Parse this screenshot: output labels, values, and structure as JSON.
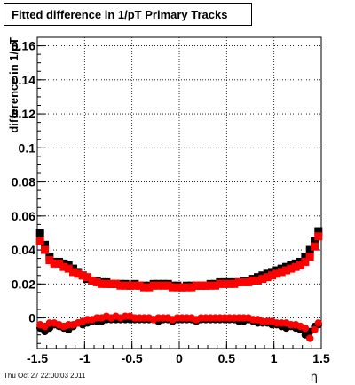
{
  "title": "Fitted difference in 1/pT  Primary Tracks",
  "timestamp": "Thu Oct 27 22:00:03 2011",
  "chart_data": {
    "type": "scatter",
    "xlabel": "η",
    "ylabel": "difference in 1/pT",
    "xlim": [
      -1.5,
      1.5
    ],
    "ylim": [
      -0.018,
      0.165
    ],
    "grid": true,
    "x_ticks": [
      -1.5,
      -1,
      -0.5,
      0,
      0.5,
      1,
      1.5
    ],
    "x_tick_labels": [
      "-1.5",
      "-1",
      "-0.5",
      "0",
      "0.5",
      "1",
      "1.5"
    ],
    "y_ticks": [
      0,
      0.02,
      0.04,
      0.06,
      0.08,
      0.1,
      0.12,
      0.14,
      0.16
    ],
    "y_tick_labels": [
      "0",
      "0.02",
      "0.04",
      "0.06",
      "0.08",
      "0.1",
      "0.12",
      "0.14",
      "0.16"
    ],
    "colors": {
      "black": "#000000",
      "red": "#ff0000"
    },
    "series": [
      {
        "marker": "square",
        "color": "#000000",
        "x": [
          -1.47,
          -1.42,
          -1.37,
          -1.32,
          -1.27,
          -1.22,
          -1.17,
          -1.12,
          -1.07,
          -1.02,
          -0.97,
          -0.92,
          -0.87,
          -0.82,
          -0.77,
          -0.72,
          -0.67,
          -0.62,
          -0.57,
          -0.52,
          -0.47,
          -0.42,
          -0.37,
          -0.32,
          -0.27,
          -0.22,
          -0.17,
          -0.12,
          -0.07,
          -0.02,
          0.03,
          0.08,
          0.13,
          0.18,
          0.23,
          0.28,
          0.33,
          0.38,
          0.43,
          0.48,
          0.53,
          0.58,
          0.63,
          0.68,
          0.73,
          0.78,
          0.83,
          0.88,
          0.93,
          0.98,
          1.03,
          1.08,
          1.13,
          1.18,
          1.23,
          1.28,
          1.33,
          1.38,
          1.43,
          1.47
        ],
        "y": [
          0.05,
          0.043,
          0.036,
          0.033,
          0.033,
          0.032,
          0.031,
          0.029,
          0.027,
          0.025,
          0.023,
          0.022,
          0.022,
          0.021,
          0.021,
          0.02,
          0.02,
          0.02,
          0.02,
          0.019,
          0.02,
          0.019,
          0.019,
          0.019,
          0.02,
          0.02,
          0.02,
          0.02,
          0.019,
          0.019,
          0.018,
          0.019,
          0.019,
          0.019,
          0.019,
          0.019,
          0.02,
          0.02,
          0.021,
          0.021,
          0.021,
          0.021,
          0.021,
          0.022,
          0.022,
          0.023,
          0.024,
          0.025,
          0.026,
          0.027,
          0.028,
          0.029,
          0.03,
          0.031,
          0.032,
          0.033,
          0.036,
          0.04,
          0.045,
          0.051
        ]
      },
      {
        "marker": "square",
        "color": "#ff0000",
        "x": [
          -1.47,
          -1.42,
          -1.37,
          -1.32,
          -1.27,
          -1.22,
          -1.17,
          -1.12,
          -1.07,
          -1.02,
          -0.97,
          -0.92,
          -0.87,
          -0.82,
          -0.77,
          -0.72,
          -0.67,
          -0.62,
          -0.57,
          -0.52,
          -0.47,
          -0.42,
          -0.37,
          -0.32,
          -0.27,
          -0.22,
          -0.17,
          -0.12,
          -0.07,
          -0.02,
          0.03,
          0.08,
          0.13,
          0.18,
          0.23,
          0.28,
          0.33,
          0.38,
          0.43,
          0.48,
          0.53,
          0.58,
          0.63,
          0.68,
          0.73,
          0.78,
          0.83,
          0.88,
          0.93,
          0.98,
          1.03,
          1.08,
          1.13,
          1.18,
          1.23,
          1.28,
          1.33,
          1.38,
          1.43,
          1.47
        ],
        "y": [
          0.045,
          0.04,
          0.034,
          0.032,
          0.032,
          0.03,
          0.029,
          0.027,
          0.026,
          0.025,
          0.024,
          0.022,
          0.021,
          0.02,
          0.02,
          0.02,
          0.02,
          0.019,
          0.019,
          0.019,
          0.019,
          0.019,
          0.018,
          0.018,
          0.019,
          0.019,
          0.019,
          0.019,
          0.018,
          0.018,
          0.018,
          0.018,
          0.018,
          0.019,
          0.019,
          0.019,
          0.019,
          0.019,
          0.02,
          0.02,
          0.02,
          0.02,
          0.021,
          0.021,
          0.021,
          0.022,
          0.022,
          0.023,
          0.024,
          0.025,
          0.026,
          0.027,
          0.028,
          0.029,
          0.03,
          0.031,
          0.033,
          0.036,
          0.042,
          0.048
        ]
      },
      {
        "marker": "circle",
        "color": "#000000",
        "x": [
          -1.47,
          -1.42,
          -1.37,
          -1.32,
          -1.27,
          -1.22,
          -1.17,
          -1.12,
          -1.07,
          -1.02,
          -0.97,
          -0.92,
          -0.87,
          -0.82,
          -0.77,
          -0.72,
          -0.67,
          -0.62,
          -0.57,
          -0.52,
          -0.47,
          -0.42,
          -0.37,
          -0.32,
          -0.27,
          -0.22,
          -0.17,
          -0.12,
          -0.07,
          -0.02,
          0.03,
          0.08,
          0.13,
          0.18,
          0.23,
          0.28,
          0.33,
          0.38,
          0.43,
          0.48,
          0.53,
          0.58,
          0.63,
          0.68,
          0.73,
          0.78,
          0.83,
          0.88,
          0.93,
          0.98,
          1.03,
          1.08,
          1.13,
          1.18,
          1.23,
          1.28,
          1.33,
          1.38,
          1.43,
          1.47
        ],
        "y": [
          -0.006,
          -0.008,
          -0.006,
          -0.004,
          -0.005,
          -0.006,
          -0.007,
          -0.005,
          -0.003,
          -0.004,
          -0.003,
          -0.002,
          -0.002,
          -0.002,
          -0.001,
          -0.001,
          -0.001,
          -0.001,
          -0.001,
          -0.001,
          -0.001,
          -0.001,
          -0.001,
          -0.001,
          -0.001,
          -0.002,
          -0.001,
          -0.001,
          -0.002,
          -0.001,
          -0.001,
          -0.001,
          -0.001,
          -0.002,
          -0.001,
          -0.001,
          -0.001,
          -0.001,
          -0.001,
          -0.001,
          -0.001,
          -0.001,
          -0.002,
          -0.002,
          -0.001,
          -0.002,
          -0.003,
          -0.003,
          -0.003,
          -0.004,
          -0.004,
          -0.005,
          -0.006,
          -0.005,
          -0.006,
          -0.007,
          -0.01,
          -0.008,
          -0.005,
          -0.004
        ]
      },
      {
        "marker": "circle",
        "color": "#ff0000",
        "x": [
          -1.47,
          -1.42,
          -1.37,
          -1.32,
          -1.27,
          -1.22,
          -1.17,
          -1.12,
          -1.07,
          -1.02,
          -0.97,
          -0.92,
          -0.87,
          -0.82,
          -0.77,
          -0.72,
          -0.67,
          -0.62,
          -0.57,
          -0.52,
          -0.47,
          -0.42,
          -0.37,
          -0.32,
          -0.27,
          -0.22,
          -0.17,
          -0.12,
          -0.07,
          -0.02,
          0.03,
          0.08,
          0.13,
          0.18,
          0.23,
          0.28,
          0.33,
          0.38,
          0.43,
          0.48,
          0.53,
          0.58,
          0.63,
          0.68,
          0.73,
          0.78,
          0.83,
          0.88,
          0.93,
          0.98,
          1.03,
          1.08,
          1.13,
          1.18,
          1.23,
          1.28,
          1.33,
          1.38,
          1.43,
          1.47
        ],
        "y": [
          -0.004,
          -0.005,
          -0.003,
          -0.003,
          -0.004,
          -0.005,
          -0.004,
          -0.004,
          -0.003,
          -0.002,
          -0.001,
          -0.001,
          0.0,
          0.0,
          0.001,
          0.0,
          0.001,
          0.0,
          0.001,
          0.001,
          0.0,
          0.0,
          0.0,
          0.0,
          -0.001,
          0.0,
          0.0,
          0.0,
          -0.001,
          0.0,
          0.0,
          0.0,
          0.0,
          -0.001,
          0.0,
          0.0,
          0.0,
          0.0,
          0.0,
          0.0,
          0.0,
          0.0,
          0.0,
          0.0,
          0.0,
          -0.001,
          -0.001,
          -0.002,
          -0.002,
          -0.002,
          -0.003,
          -0.003,
          -0.003,
          -0.004,
          -0.004,
          -0.005,
          -0.006,
          -0.012,
          -0.007,
          -0.003
        ]
      }
    ]
  }
}
